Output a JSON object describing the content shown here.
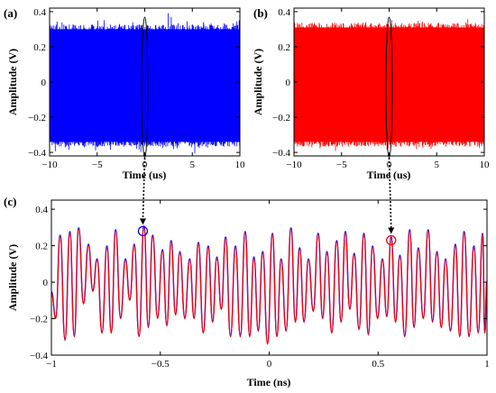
{
  "chart_data": [
    {
      "panel_label": "(a)",
      "type": "line",
      "xlabel": "Time (us)",
      "ylabel": "Amplitude (V)",
      "xlim": [
        -10,
        10
      ],
      "ylim": [
        -0.42,
        0.42
      ],
      "x_ticks": [
        "−10",
        "−5",
        "0",
        "5",
        "10"
      ],
      "y_ticks": [
        "0.4",
        "0.2",
        "0",
        "−0.2",
        "−0.4"
      ],
      "series": [
        {
          "color": "#0000ff",
          "upper_envelope": 0.3,
          "lower_envelope": -0.34,
          "peak_max": 0.37,
          "peak_min": -0.38
        }
      ],
      "grid": false
    },
    {
      "panel_label": "(b)",
      "type": "line",
      "xlabel": "Time (us)",
      "ylabel": "Amplitude (V)",
      "xlim": [
        -10,
        10
      ],
      "ylim": [
        -0.42,
        0.42
      ],
      "x_ticks": [
        "−10",
        "−5",
        "0",
        "5",
        "10"
      ],
      "y_ticks": [
        "0.4",
        "0.2",
        "0",
        "−0.2",
        "−0.4"
      ],
      "series": [
        {
          "color": "#ff0000",
          "upper_envelope": 0.31,
          "lower_envelope": -0.34,
          "peak_max": 0.34,
          "peak_min": -0.37
        }
      ],
      "grid": false
    },
    {
      "panel_label": "(c)",
      "type": "line",
      "xlabel": "Time (ns)",
      "ylabel": "Amplitude (V)",
      "xlim": [
        -1,
        1
      ],
      "ylim": [
        -0.4,
        0.45
      ],
      "x_ticks": [
        "−1",
        "−0.5",
        "0",
        "0.5",
        "1"
      ],
      "y_ticks": [
        "0.4",
        "0.2",
        "0",
        "−0.2",
        "−0.4"
      ],
      "series": [
        {
          "color": "#0000ff",
          "style": "solid"
        },
        {
          "color": "#ff0000",
          "style": "solid"
        }
      ],
      "peaks_x": [
        -0.96,
        -0.915,
        -0.875,
        -0.83,
        -0.79,
        -0.745,
        -0.705,
        -0.66,
        -0.62,
        -0.575,
        -0.535,
        -0.49,
        -0.45,
        -0.41,
        -0.365,
        -0.325,
        -0.28,
        -0.24,
        -0.2,
        -0.155,
        -0.11,
        -0.07,
        -0.03,
        0.015,
        0.055,
        0.1,
        0.14,
        0.18,
        0.225,
        0.265,
        0.31,
        0.35,
        0.39,
        0.435,
        0.475,
        0.52,
        0.56,
        0.6,
        0.645,
        0.685,
        0.73,
        0.77,
        0.81,
        0.855,
        0.895,
        0.94,
        0.98
      ],
      "peaks_y": [
        0.25,
        0.27,
        0.29,
        0.2,
        0.12,
        0.19,
        0.28,
        0.12,
        0.2,
        0.3,
        0.25,
        0.17,
        0.22,
        0.16,
        0.12,
        0.21,
        0.19,
        0.13,
        0.24,
        0.19,
        0.27,
        0.13,
        0.16,
        0.26,
        0.12,
        0.29,
        0.18,
        0.12,
        0.26,
        0.16,
        0.22,
        0.27,
        0.15,
        0.26,
        0.19,
        0.12,
        0.24,
        0.14,
        0.28,
        0.18,
        0.28,
        0.16,
        0.12,
        0.2,
        0.27,
        0.19,
        0.26
      ],
      "troughs_y": [
        -0.2,
        -0.32,
        -0.3,
        -0.12,
        -0.05,
        -0.28,
        -0.28,
        -0.2,
        -0.1,
        -0.3,
        -0.25,
        -0.2,
        -0.24,
        -0.18,
        -0.2,
        -0.2,
        -0.28,
        -0.22,
        -0.15,
        -0.3,
        -0.3,
        -0.3,
        -0.27,
        -0.34,
        -0.3,
        -0.27,
        -0.22,
        -0.22,
        -0.16,
        -0.2,
        -0.28,
        -0.22,
        -0.15,
        -0.26,
        -0.29,
        -0.2,
        -0.19,
        -0.22,
        -0.3,
        -0.25,
        -0.2,
        -0.22,
        -0.25,
        -0.27,
        -0.3,
        -0.3,
        -0.28
      ],
      "markers": [
        {
          "x": -0.58,
          "y": 0.28,
          "color": "#0000ff"
        },
        {
          "x": 0.56,
          "y": 0.23,
          "color": "#ff0000"
        }
      ],
      "grid": false
    }
  ]
}
